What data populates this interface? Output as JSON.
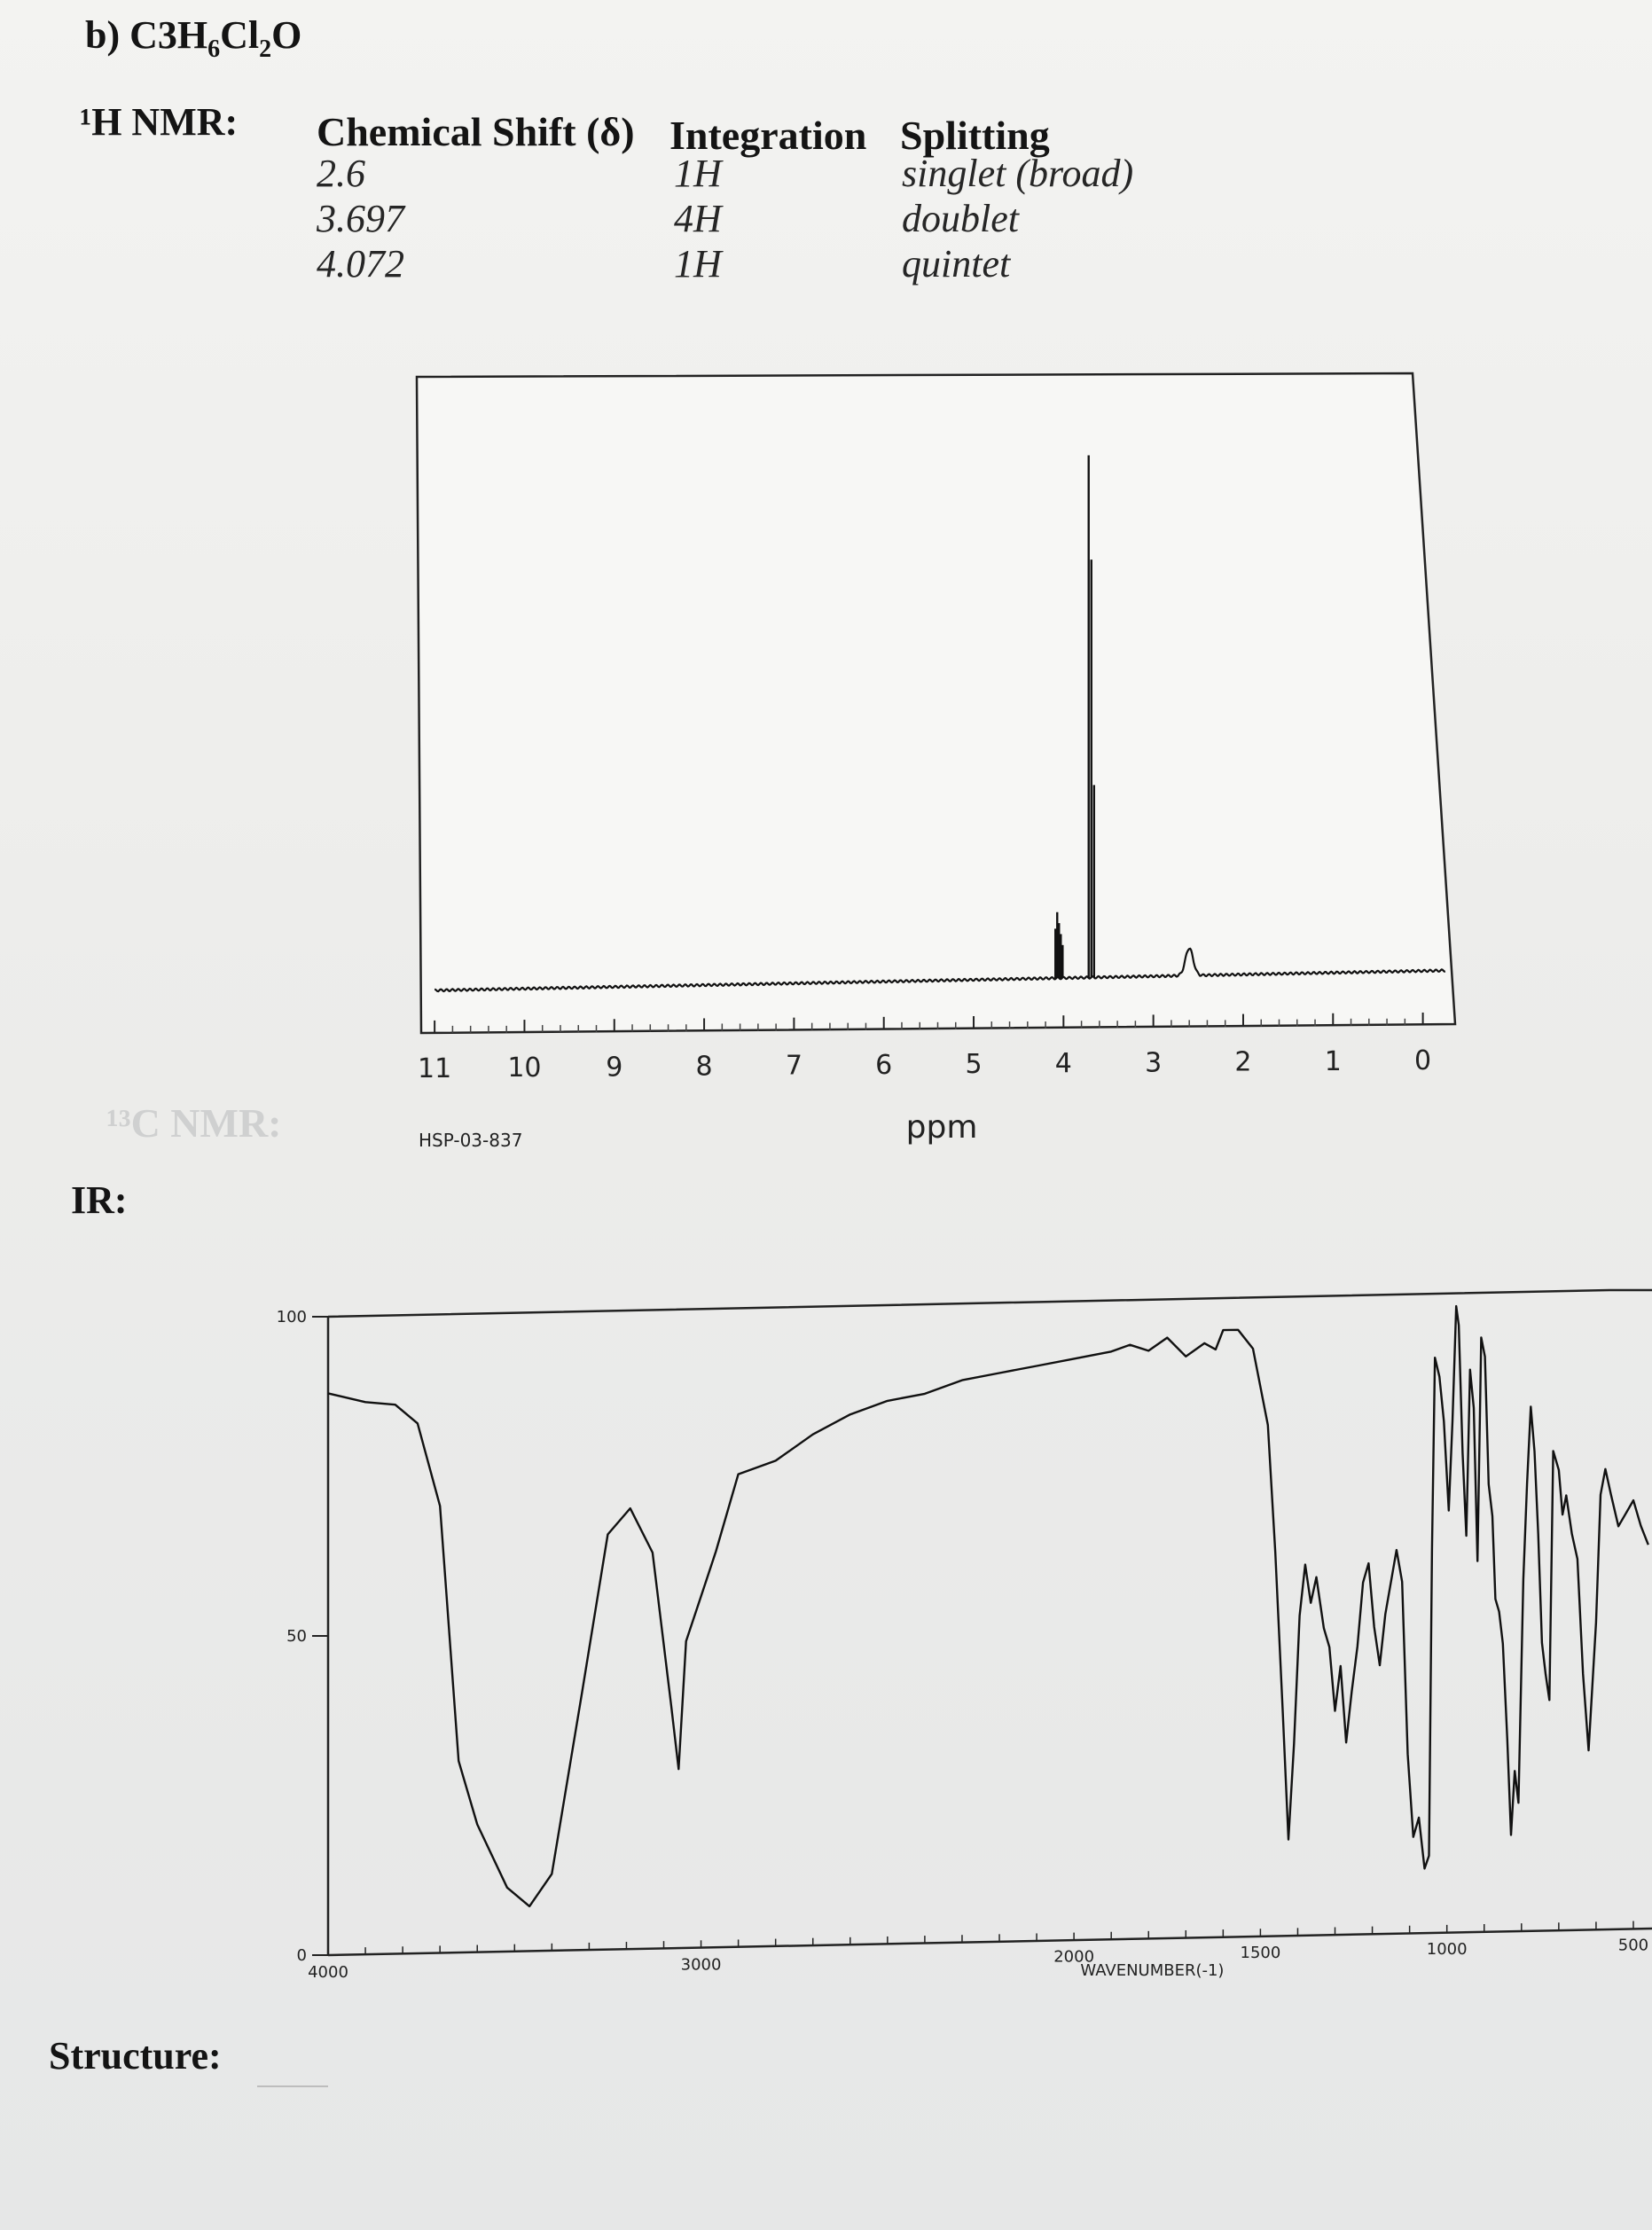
{
  "problem": {
    "label": "b)",
    "formula_parts": [
      {
        "text": "C",
        "sub": false
      },
      {
        "text": "3",
        "sub": false
      },
      {
        "text": "H",
        "sub": false
      },
      {
        "text": "6",
        "sub": true
      },
      {
        "text": "Cl",
        "sub": false
      },
      {
        "text": "2",
        "sub": true
      },
      {
        "text": "O",
        "sub": false
      }
    ]
  },
  "labels": {
    "h_nmr": "¹H NMR:",
    "c_nmr": "¹³C NMR:",
    "ir": "IR:",
    "structure": "Structure:"
  },
  "nmr_table": {
    "headers": {
      "shift": "Chemical Shift (δ)",
      "integration": "Integration",
      "splitting": "Splitting"
    },
    "rows": [
      {
        "shift": "2.6",
        "integration": "1H",
        "splitting": "singlet (broad)"
      },
      {
        "shift": "3.697",
        "integration": "4H",
        "splitting": "doublet"
      },
      {
        "shift": "4.072",
        "integration": "1H",
        "splitting": "quintet"
      }
    ]
  },
  "chart_data": [
    {
      "type": "line",
      "id": "h-nmr-spectrum",
      "xlabel": "ppm",
      "code": "HSP-03-837",
      "x_reversed": true,
      "xlim": [
        11.1,
        -0.3
      ],
      "ylim": [
        0,
        1
      ],
      "x_ticks": [
        11,
        10,
        9,
        8,
        7,
        6,
        5,
        4,
        3,
        2,
        1,
        0
      ],
      "x_tick_labels": [
        "11",
        "10",
        "9",
        "8",
        "7",
        "6",
        "5",
        "4",
        "3",
        "2",
        "1",
        "0"
      ],
      "color": "#111111",
      "peaks": [
        {
          "ppm": 4.09,
          "height": 0.09
        },
        {
          "ppm": 4.07,
          "height": 0.12
        },
        {
          "ppm": 4.05,
          "height": 0.1
        },
        {
          "ppm": 4.03,
          "height": 0.08
        },
        {
          "ppm": 4.01,
          "height": 0.06
        },
        {
          "ppm": 3.72,
          "height": 0.95
        },
        {
          "ppm": 3.69,
          "height": 0.76
        },
        {
          "ppm": 3.66,
          "height": 0.35
        },
        {
          "ppm": 2.6,
          "height": 0.05,
          "broad": true
        }
      ]
    },
    {
      "type": "line",
      "id": "ir-spectrum",
      "xlabel": "WAVENUMBER(-1)",
      "x_reversed": true,
      "xlim": [
        4000,
        450
      ],
      "ylim": [
        0,
        100
      ],
      "y_ticks": [
        0,
        50,
        100
      ],
      "y_tick_labels": [
        "0",
        "50",
        "100"
      ],
      "x_tick_labels_shown": [
        4000,
        3000,
        2000,
        1500,
        1000,
        500
      ],
      "x_tick_labels": [
        "4000",
        "3000",
        "2000",
        "1500",
        "1000",
        "500"
      ],
      "color": "#111111",
      "points": [
        [
          4000,
          88
        ],
        [
          3900,
          86.5
        ],
        [
          3820,
          86
        ],
        [
          3760,
          83
        ],
        [
          3700,
          70
        ],
        [
          3650,
          30
        ],
        [
          3600,
          20
        ],
        [
          3520,
          10
        ],
        [
          3460,
          7
        ],
        [
          3400,
          12
        ],
        [
          3320,
          40
        ],
        [
          3250,
          65
        ],
        [
          3190,
          69
        ],
        [
          3130,
          62
        ],
        [
          3080,
          38
        ],
        [
          3060,
          28
        ],
        [
          3040,
          48
        ],
        [
          3000,
          55
        ],
        [
          2960,
          62
        ],
        [
          2900,
          74
        ],
        [
          2800,
          76
        ],
        [
          2700,
          80
        ],
        [
          2600,
          83
        ],
        [
          2500,
          85
        ],
        [
          2400,
          86
        ],
        [
          2300,
          88
        ],
        [
          2200,
          89
        ],
        [
          2100,
          90
        ],
        [
          2000,
          91
        ],
        [
          1900,
          92
        ],
        [
          1850,
          93
        ],
        [
          1800,
          92
        ],
        [
          1750,
          94
        ],
        [
          1700,
          91
        ],
        [
          1650,
          93
        ],
        [
          1620,
          92
        ],
        [
          1600,
          95
        ],
        [
          1560,
          95
        ],
        [
          1520,
          92
        ],
        [
          1480,
          80
        ],
        [
          1460,
          60
        ],
        [
          1440,
          35
        ],
        [
          1425,
          15
        ],
        [
          1410,
          30
        ],
        [
          1395,
          50
        ],
        [
          1380,
          58
        ],
        [
          1365,
          52
        ],
        [
          1350,
          56
        ],
        [
          1330,
          48
        ],
        [
          1315,
          45
        ],
        [
          1300,
          35
        ],
        [
          1285,
          42
        ],
        [
          1270,
          30
        ],
        [
          1255,
          38
        ],
        [
          1240,
          45
        ],
        [
          1225,
          55
        ],
        [
          1210,
          58
        ],
        [
          1195,
          48
        ],
        [
          1180,
          42
        ],
        [
          1165,
          50
        ],
        [
          1150,
          55
        ],
        [
          1135,
          60
        ],
        [
          1120,
          55
        ],
        [
          1105,
          28
        ],
        [
          1090,
          15
        ],
        [
          1075,
          18
        ],
        [
          1060,
          10
        ],
        [
          1048,
          12
        ],
        [
          1040,
          60
        ],
        [
          1032,
          90
        ],
        [
          1020,
          87
        ],
        [
          1008,
          80
        ],
        [
          995,
          66
        ],
        [
          985,
          80
        ],
        [
          975,
          98
        ],
        [
          968,
          95
        ],
        [
          958,
          75
        ],
        [
          948,
          62
        ],
        [
          938,
          88
        ],
        [
          928,
          82
        ],
        [
          918,
          58
        ],
        [
          908,
          93
        ],
        [
          898,
          90
        ],
        [
          888,
          70
        ],
        [
          878,
          65
        ],
        [
          870,
          52
        ],
        [
          860,
          50
        ],
        [
          850,
          45
        ],
        [
          838,
          30
        ],
        [
          828,
          15
        ],
        [
          818,
          25
        ],
        [
          808,
          20
        ],
        [
          795,
          55
        ],
        [
          785,
          70
        ],
        [
          775,
          82
        ],
        [
          765,
          75
        ],
        [
          755,
          62
        ],
        [
          745,
          45
        ],
        [
          735,
          40
        ],
        [
          725,
          36
        ],
        [
          715,
          75
        ],
        [
          700,
          72
        ],
        [
          690,
          65
        ],
        [
          680,
          68
        ],
        [
          665,
          62
        ],
        [
          650,
          58
        ],
        [
          635,
          40
        ],
        [
          620,
          28
        ],
        [
          600,
          48
        ],
        [
          588,
          68
        ],
        [
          575,
          72
        ],
        [
          560,
          68
        ],
        [
          540,
          63
        ],
        [
          520,
          65
        ],
        [
          500,
          67
        ],
        [
          480,
          63
        ],
        [
          460,
          60
        ]
      ]
    }
  ]
}
